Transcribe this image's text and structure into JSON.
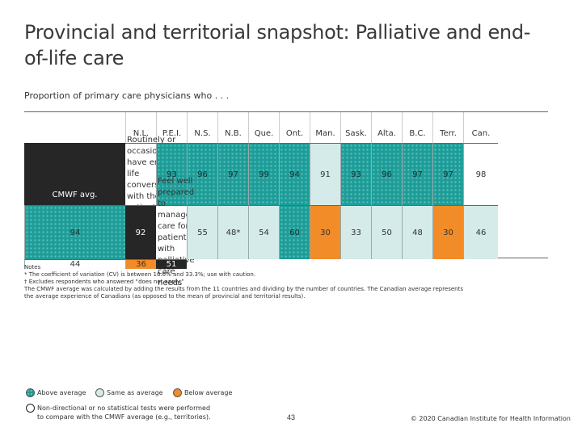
{
  "title": "Provincial and territorial snapshot: Palliative and end-of-life care",
  "subtitle": "Proportion of primary care physicians who . . .",
  "columns": [
    "N.L.",
    "P.E.I.",
    "N.S.",
    "N.B.",
    "Que.",
    "Ont.",
    "Man.",
    "Sask.",
    "Alta.",
    "B.C.",
    "Terr.",
    "Can.",
    "CMWF avg."
  ],
  "rows": [
    {
      "label": "Routinely or occasionally have end-of-life conversations with their patients†",
      "values": [
        "93",
        "96",
        "97",
        "99",
        "94",
        "91",
        "93",
        "96",
        "97",
        "97",
        "98",
        "94",
        "92"
      ],
      "status": [
        "above",
        "above",
        "above",
        "above",
        "above",
        "same",
        "above",
        "above",
        "above",
        "above",
        "none",
        "above",
        "cmwf"
      ]
    },
    {
      "label": "Feel well prepared to manage care for patients with palliative care needs",
      "values": [
        "55",
        "48*",
        "54",
        "60",
        "30",
        "33",
        "50",
        "48",
        "30",
        "46",
        "44",
        "36",
        "51"
      ],
      "status": [
        "same",
        "same",
        "same",
        "above",
        "below",
        "same",
        "same",
        "same",
        "below",
        "same",
        "none",
        "below",
        "cmwf"
      ]
    }
  ],
  "colors": {
    "above": "#1e9d98",
    "same": "#d4ebe9",
    "below": "#f28c28",
    "none": "#ffffff",
    "cmwf": "#262626"
  },
  "notes": {
    "heading": "Notes",
    "lines": [
      "* The coefficient of variation (CV) is between 16.6% and 33.3%; use with caution.",
      "† Excludes respondents who answered “does not apply.”",
      "The CMWF average was calculated by adding the results from the 11 countries and dividing by the number of countries. The Canadian average represents",
      "the average experience of Canadians (as opposed to the mean of provincial and territorial results)."
    ]
  },
  "legend": {
    "above": "Above average",
    "same": "Same as average",
    "below": "Below average",
    "none_line1": "Non-directional or no statistical tests were performed",
    "none_line2": "to compare with the CMWF average (e.g., territories)."
  },
  "page_number": "43",
  "copyright": "© 2020 Canadian Institute for Health Information"
}
